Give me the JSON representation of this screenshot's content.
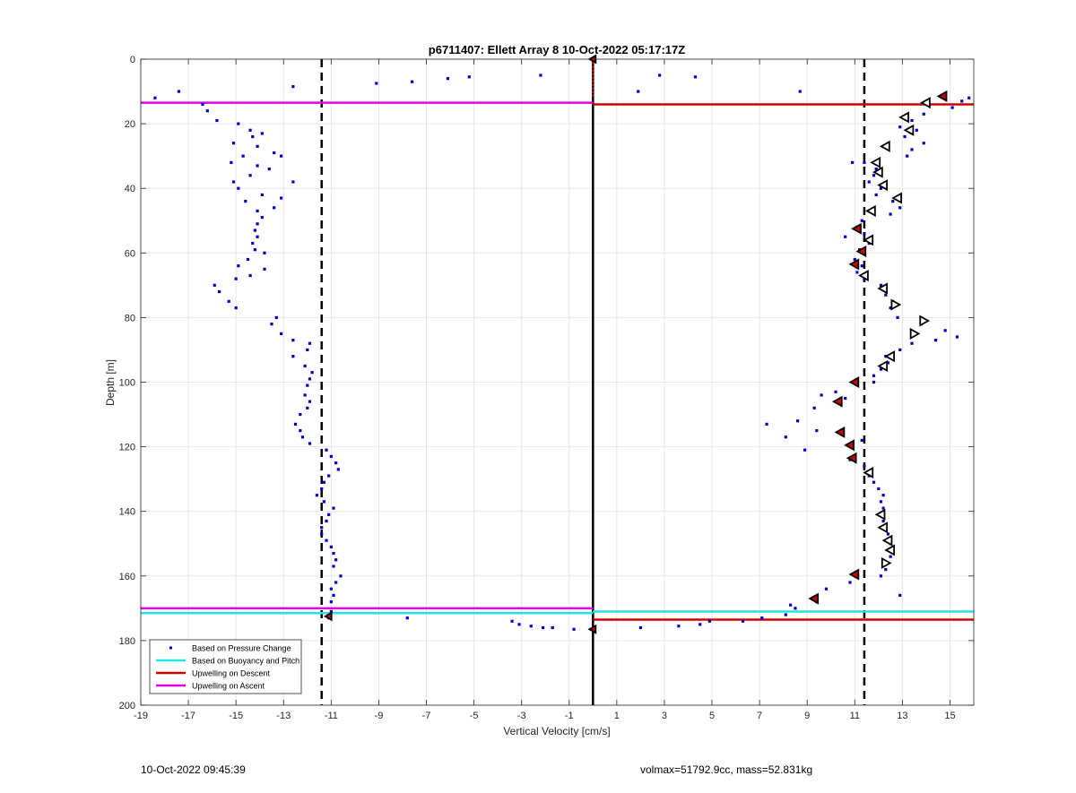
{
  "chart_data": {
    "type": "scatter",
    "title": "p6711407: Ellett Array 8 10-Oct-2022 05:17:17Z",
    "xlabel": "Vertical Velocity [cm/s]",
    "ylabel": "Depth [m]",
    "xlim": [
      -19,
      16
    ],
    "ylim": [
      0,
      200
    ],
    "y_reversed": true,
    "x_ticks": [
      -19,
      -17,
      -15,
      -13,
      -11,
      -9,
      -7,
      -5,
      -3,
      -1,
      1,
      3,
      5,
      7,
      9,
      11,
      13,
      15
    ],
    "y_ticks": [
      0,
      20,
      40,
      60,
      80,
      100,
      120,
      140,
      160,
      180,
      200
    ],
    "grid": true,
    "legend_position": "bottom-left",
    "legend": [
      {
        "label": "Based on Pressure Change",
        "kind": "marker",
        "color": "#0000cc"
      },
      {
        "label": "Based on Buoyancy and Pitch",
        "kind": "line",
        "color": "#22e5e5"
      },
      {
        "label": "Upwelling on Descent",
        "kind": "line",
        "color": "#cc0000"
      },
      {
        "label": "Upwelling on Ascent",
        "kind": "line",
        "color": "#dd00dd"
      }
    ],
    "colors": {
      "pressure": "#0000cc",
      "buoyancy": "#22e5e5",
      "descent": "#cc0000",
      "ascent": "#dd00dd",
      "reference": "#000000"
    },
    "dashed_vertical_lines_x": [
      -11.4,
      11.4
    ],
    "zero_line_x": 0,
    "horizontal_lines": [
      {
        "series": "ascent",
        "y": 13.5,
        "x_from": -19,
        "x_to": 0
      },
      {
        "series": "descent",
        "y": 14,
        "x_from": 0,
        "x_to": 16
      },
      {
        "series": "ascent",
        "y": 170,
        "x_from": -19,
        "x_to": 0
      },
      {
        "series": "buoyancy",
        "y": 171.5,
        "x_from": -19,
        "x_to": 0
      },
      {
        "series": "buoyancy",
        "y": 171,
        "x_from": 0,
        "x_to": 16
      },
      {
        "series": "descent",
        "y": 173.5,
        "x_from": 0,
        "x_to": 16
      }
    ],
    "ascent_pressure_points": [
      [
        -18.4,
        12
      ],
      [
        -17.4,
        10
      ],
      [
        -16.4,
        14
      ],
      [
        -16.2,
        16
      ],
      [
        -15.8,
        19
      ],
      [
        -14.9,
        20
      ],
      [
        -14.4,
        22
      ],
      [
        -13.9,
        23
      ],
      [
        -14.3,
        24
      ],
      [
        -15.1,
        26
      ],
      [
        -14.1,
        27
      ],
      [
        -13.4,
        29
      ],
      [
        -14.7,
        30
      ],
      [
        -13.1,
        30
      ],
      [
        -15.2,
        32
      ],
      [
        -14.1,
        33
      ],
      [
        -13.6,
        34
      ],
      [
        -14.4,
        36
      ],
      [
        -15.1,
        38
      ],
      [
        -12.6,
        38
      ],
      [
        -14.9,
        40
      ],
      [
        -13.9,
        42
      ],
      [
        -13.1,
        43
      ],
      [
        -14.6,
        44
      ],
      [
        -13.4,
        46
      ],
      [
        -14.1,
        47
      ],
      [
        -13.9,
        49
      ],
      [
        -14.1,
        51
      ],
      [
        -14.2,
        53
      ],
      [
        -14.1,
        55
      ],
      [
        -14.3,
        57
      ],
      [
        -14.2,
        59
      ],
      [
        -13.8,
        60
      ],
      [
        -14.5,
        62
      ],
      [
        -14.9,
        64
      ],
      [
        -13.8,
        65
      ],
      [
        -14.4,
        67
      ],
      [
        -15.0,
        68
      ],
      [
        -15.9,
        70
      ],
      [
        -15.7,
        72
      ],
      [
        -15.3,
        75
      ],
      [
        -15.0,
        77
      ],
      [
        -13.3,
        80
      ],
      [
        -13.5,
        82
      ],
      [
        -13.1,
        85
      ],
      [
        -12.6,
        87
      ],
      [
        -11.9,
        88
      ],
      [
        -12.0,
        90
      ],
      [
        -12.6,
        92
      ],
      [
        -12.1,
        95
      ],
      [
        -11.8,
        97
      ],
      [
        -11.9,
        99
      ],
      [
        -12.0,
        101
      ],
      [
        -12.1,
        104
      ],
      [
        -11.9,
        106
      ],
      [
        -12.0,
        108
      ],
      [
        -12.3,
        110
      ],
      [
        -12.5,
        113
      ],
      [
        -12.3,
        115
      ],
      [
        -12.2,
        117
      ],
      [
        -11.9,
        119
      ],
      [
        -11.2,
        121
      ],
      [
        -11.0,
        123
      ],
      [
        -10.8,
        125
      ],
      [
        -10.7,
        127
      ],
      [
        -11.1,
        129
      ],
      [
        -11.3,
        131
      ],
      [
        -11.4,
        133
      ],
      [
        -11.6,
        135
      ],
      [
        -11.3,
        137
      ],
      [
        -10.9,
        139
      ],
      [
        -11.1,
        141
      ],
      [
        -11.2,
        143
      ],
      [
        -11.4,
        145
      ],
      [
        -11.4,
        147
      ],
      [
        -11.2,
        149
      ],
      [
        -11.0,
        151
      ],
      [
        -10.9,
        153
      ],
      [
        -10.8,
        155
      ],
      [
        -10.9,
        157
      ],
      [
        -10.6,
        160
      ],
      [
        -10.8,
        162
      ],
      [
        -11.0,
        164
      ],
      [
        -10.9,
        166
      ],
      [
        -11.0,
        168
      ],
      [
        -11.0,
        171
      ],
      [
        -11.1,
        173
      ],
      [
        -12.6,
        8.5
      ],
      [
        -9.1,
        7.5
      ],
      [
        -7.6,
        7
      ],
      [
        -6.1,
        6
      ],
      [
        -5.2,
        5.5
      ],
      [
        -2.2,
        5
      ],
      [
        -7.8,
        173
      ],
      [
        -3.4,
        174
      ],
      [
        -3.1,
        175
      ],
      [
        -2.6,
        175.5
      ],
      [
        -2.1,
        176
      ],
      [
        -1.7,
        176
      ],
      [
        -0.8,
        176.5
      ]
    ],
    "descent_pressure_points": [
      [
        1.9,
        10
      ],
      [
        2.8,
        5
      ],
      [
        4.3,
        5.5
      ],
      [
        8.7,
        10
      ],
      [
        15.8,
        12
      ],
      [
        15.5,
        13
      ],
      [
        15.1,
        15
      ],
      [
        13.9,
        17
      ],
      [
        13.4,
        19
      ],
      [
        12.9,
        21
      ],
      [
        13.6,
        22
      ],
      [
        13.1,
        24
      ],
      [
        13.9,
        26
      ],
      [
        13.4,
        28
      ],
      [
        13.2,
        30
      ],
      [
        11.4,
        32
      ],
      [
        10.9,
        32
      ],
      [
        11.9,
        34
      ],
      [
        11.8,
        36
      ],
      [
        11.6,
        38
      ],
      [
        12.1,
        40
      ],
      [
        11.9,
        42
      ],
      [
        12.6,
        44
      ],
      [
        12.9,
        46
      ],
      [
        12.5,
        48
      ],
      [
        11.3,
        50
      ],
      [
        11.1,
        52
      ],
      [
        11.4,
        54
      ],
      [
        10.6,
        55
      ],
      [
        11.6,
        57
      ],
      [
        11.2,
        59
      ],
      [
        11.0,
        62
      ],
      [
        11.3,
        64
      ],
      [
        11.1,
        66
      ],
      [
        11.4,
        68
      ],
      [
        12.1,
        70
      ],
      [
        12.3,
        73
      ],
      [
        12.6,
        75
      ],
      [
        12.5,
        77
      ],
      [
        12.8,
        80
      ],
      [
        13.8,
        82
      ],
      [
        14.8,
        84
      ],
      [
        15.3,
        86
      ],
      [
        14.4,
        87
      ],
      [
        13.4,
        88
      ],
      [
        12.9,
        90
      ],
      [
        12.3,
        92
      ],
      [
        12.4,
        94
      ],
      [
        12.1,
        96
      ],
      [
        11.8,
        98
      ],
      [
        11.8,
        100
      ],
      [
        10.2,
        103
      ],
      [
        9.6,
        104
      ],
      [
        10.6,
        105
      ],
      [
        9.3,
        108
      ],
      [
        8.6,
        112
      ],
      [
        7.3,
        113
      ],
      [
        9.4,
        115
      ],
      [
        8.1,
        117
      ],
      [
        11.3,
        118
      ],
      [
        8.9,
        121
      ],
      [
        10.8,
        124
      ],
      [
        11.4,
        126
      ],
      [
        11.6,
        129
      ],
      [
        11.8,
        131
      ],
      [
        12.0,
        133
      ],
      [
        12.2,
        135
      ],
      [
        12.1,
        137
      ],
      [
        12.2,
        139
      ],
      [
        12.1,
        141
      ],
      [
        12.2,
        143
      ],
      [
        12.3,
        145
      ],
      [
        12.4,
        147
      ],
      [
        12.5,
        150
      ],
      [
        12.4,
        152
      ],
      [
        12.5,
        154
      ],
      [
        12.4,
        156
      ],
      [
        12.3,
        158
      ],
      [
        12.1,
        160
      ],
      [
        10.8,
        162
      ],
      [
        9.8,
        164
      ],
      [
        12.9,
        166
      ],
      [
        9.4,
        168
      ],
      [
        8.3,
        169
      ],
      [
        8.5,
        170
      ],
      [
        8.1,
        172
      ],
      [
        7.1,
        173
      ],
      [
        6.3,
        174
      ],
      [
        4.9,
        174
      ],
      [
        4.5,
        175
      ],
      [
        3.6,
        175.5
      ],
      [
        2.0,
        176
      ]
    ],
    "descent_triangles_left": [
      [
        14.0,
        13.5
      ],
      [
        13.1,
        18
      ],
      [
        13.3,
        22
      ],
      [
        12.3,
        27
      ],
      [
        11.9,
        32
      ],
      [
        12.0,
        35
      ],
      [
        12.2,
        39
      ],
      [
        12.8,
        43
      ],
      [
        11.7,
        47
      ],
      [
        11.6,
        56
      ],
      [
        11.4,
        67
      ],
      [
        12.2,
        71
      ],
      [
        12.5,
        92
      ],
      [
        12.2,
        95
      ],
      [
        11.6,
        128
      ],
      [
        12.1,
        141
      ],
      [
        12.2,
        145
      ],
      [
        12.4,
        149
      ],
      [
        12.5,
        152
      ]
    ],
    "descent_triangles_right": [
      [
        12.7,
        76
      ],
      [
        13.9,
        81
      ],
      [
        13.5,
        85
      ],
      [
        12.3,
        156
      ]
    ],
    "descent_filled_markers": [
      [
        14.7,
        11.5
      ],
      [
        11.1,
        52.5
      ],
      [
        11.3,
        59.5
      ],
      [
        11.0,
        63.5
      ],
      [
        11.0,
        100
      ],
      [
        10.3,
        106
      ],
      [
        10.4,
        115.5
      ],
      [
        10.8,
        119.5
      ],
      [
        10.9,
        123.5
      ],
      [
        11.0,
        159.5
      ],
      [
        9.3,
        167
      ]
    ],
    "zero_line_markers": [
      [
        0,
        0
      ],
      [
        0,
        176.5
      ],
      [
        -11.1,
        172.5
      ]
    ]
  },
  "footer": {
    "timestamp": "10-Oct-2022 09:45:39",
    "float_info": "volmax=51792.9cc, mass=52.831kg"
  }
}
